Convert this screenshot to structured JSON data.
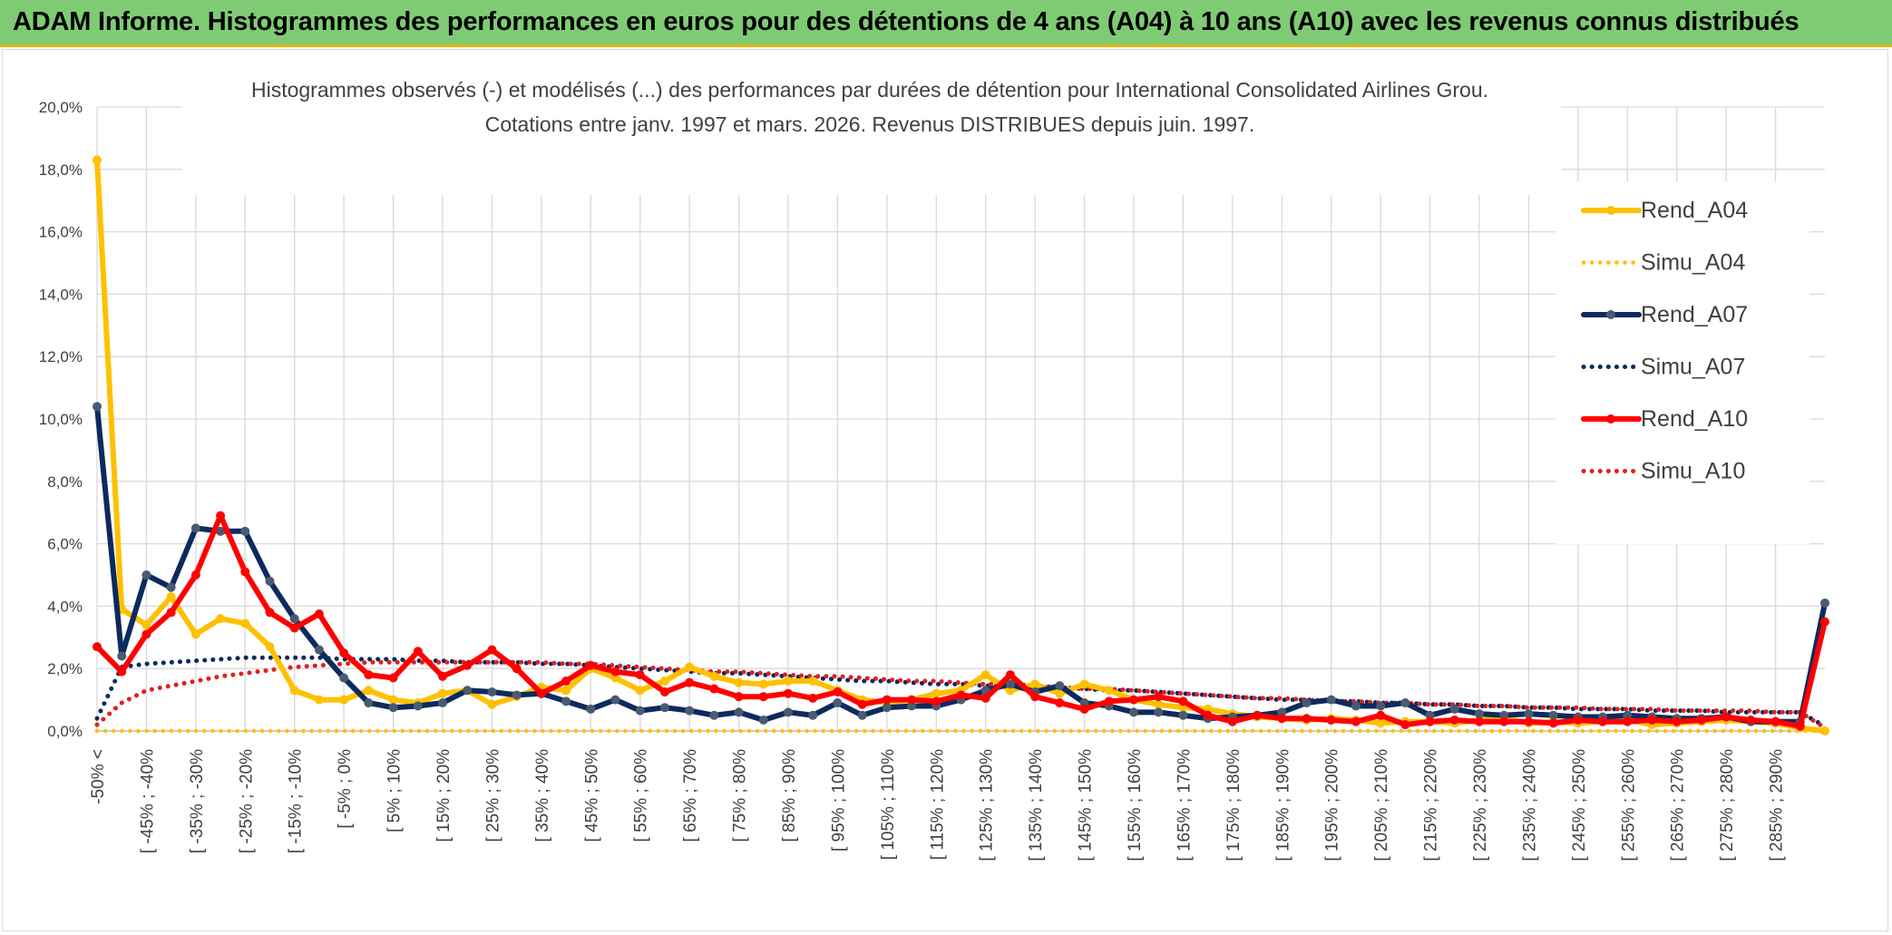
{
  "banner": {
    "title": "ADAM Informe. Histogrammes des performances en euros pour des détentions de 4 ans (A04) à 10 ans (A10) avec les revenus connus distribués"
  },
  "colors": {
    "banner_bg": "#7fcb74",
    "banner_accent": "#e8b400",
    "rend_a04": "#ffc000",
    "simu_a04": "#ffc000",
    "rend_a07": "#0d2a5e",
    "simu_a07": "#0d2a5e",
    "rend_a10": "#ff0000",
    "simu_a10": "#e02020",
    "marker_a07": "#4a5a70"
  },
  "chart_data": {
    "type": "line",
    "title": "Histogrammes observés (-) et modélisés (...) des performances par durées de détention pour International Consolidated Airlines Grou.",
    "subtitle": "Cotations entre janv. 1997 et mars. 2026. Revenus DISTRIBUES depuis juin. 1997.",
    "xlabel": "",
    "ylabel": "",
    "ylim": [
      0,
      20
    ],
    "y_ticks": [
      "0,0%",
      "2,0%",
      "4,0%",
      "6,0%",
      "8,0%",
      "10,0%",
      "12,0%",
      "14,0%",
      "16,0%",
      "18,0%",
      "20,0%"
    ],
    "grid": true,
    "legend_position": "right",
    "x_tick_labels": [
      "-50% <",
      "[ -45% ; -40%",
      "[ -35% ; -30%",
      "[ -25% ; -20%",
      "[ -15% ; -10%",
      "[ -5% ; 0%",
      "[ 5% ; 10%",
      "[ 15% ; 20%",
      "[ 25% ; 30%",
      "[ 35% ; 40%",
      "[ 45% ; 50%",
      "[ 55% ; 60%",
      "[ 65% ; 70%",
      "[ 75% ; 80%",
      "[ 85% ; 90%",
      "[ 95% ; 100%",
      "[ 105% ; 110%",
      "[ 115% ; 120%",
      "[ 125% ; 130%",
      "[ 135% ; 140%",
      "[ 145% ; 150%",
      "[ 155% ; 160%",
      "[ 165% ; 170%",
      "[ 175% ; 180%",
      "[ 185% ; 190%",
      "[ 195% ; 200%",
      "[ 205% ; 210%",
      "[ 215% ; 220%",
      "[ 225% ; 230%",
      "[ 235% ; 240%",
      "[ 245% ; 250%",
      "[ 255% ; 260%",
      "[ 265% ; 270%",
      "[ 275% ; 280%",
      "[ 285% ; 290%"
    ],
    "x_count": 71,
    "series": [
      {
        "name": "Rend_A04",
        "style": "solid",
        "values": [
          18.3,
          3.9,
          3.4,
          4.3,
          3.1,
          3.6,
          3.45,
          2.7,
          1.3,
          1.0,
          1.0,
          1.3,
          1.0,
          0.9,
          1.2,
          1.3,
          0.85,
          1.1,
          1.4,
          1.3,
          2.0,
          1.7,
          1.3,
          1.6,
          2.05,
          1.75,
          1.55,
          1.5,
          1.6,
          1.6,
          1.3,
          1.0,
          0.9,
          1.0,
          1.2,
          1.3,
          1.8,
          1.3,
          1.5,
          1.2,
          1.5,
          1.3,
          1.0,
          0.85,
          0.75,
          0.7,
          0.55,
          0.45,
          0.4,
          0.35,
          0.4,
          0.35,
          0.25,
          0.3,
          0.3,
          0.25,
          0.35,
          0.4,
          0.25,
          0.3,
          0.25,
          0.3,
          0.35,
          0.2,
          0.25,
          0.3,
          0.35,
          0.3,
          0.25,
          0.1,
          0.0
        ]
      },
      {
        "name": "Simu_A04",
        "style": "dotted",
        "values": [
          0.0,
          0.0,
          0.0,
          0.0,
          0.0,
          0.0,
          0.0,
          0.0,
          0.0,
          0.0,
          0.0,
          0.0,
          0.0,
          0.0,
          0.0,
          0.0,
          0.0,
          0.0,
          0.0,
          0.0,
          0.0,
          0.0,
          0.0,
          0.0,
          0.0,
          0.0,
          0.0,
          0.0,
          0.0,
          0.0,
          0.0,
          0.0,
          0.0,
          0.0,
          0.0,
          0.0,
          0.0,
          0.0,
          0.0,
          0.0,
          0.0,
          0.0,
          0.0,
          0.0,
          0.0,
          0.0,
          0.0,
          0.0,
          0.0,
          0.0,
          0.0,
          0.0,
          0.0,
          0.0,
          0.0,
          0.0,
          0.0,
          0.0,
          0.0,
          0.0,
          0.0,
          0.0,
          0.0,
          0.0,
          0.0,
          0.0,
          0.0,
          0.0,
          0.0,
          0.0,
          0.0
        ]
      },
      {
        "name": "Rend_A07",
        "style": "solid",
        "values": [
          10.4,
          2.4,
          5.0,
          4.6,
          6.5,
          6.4,
          6.4,
          4.8,
          3.6,
          2.6,
          1.7,
          0.9,
          0.75,
          0.8,
          0.9,
          1.3,
          1.25,
          1.15,
          1.2,
          0.95,
          0.7,
          1.0,
          0.65,
          0.75,
          0.65,
          0.5,
          0.6,
          0.35,
          0.6,
          0.5,
          0.9,
          0.5,
          0.75,
          0.8,
          0.8,
          1.0,
          1.3,
          1.5,
          1.25,
          1.45,
          0.9,
          0.8,
          0.6,
          0.6,
          0.5,
          0.4,
          0.45,
          0.5,
          0.6,
          0.9,
          1.0,
          0.8,
          0.8,
          0.9,
          0.5,
          0.7,
          0.55,
          0.5,
          0.55,
          0.5,
          0.45,
          0.45,
          0.5,
          0.45,
          0.4,
          0.4,
          0.45,
          0.3,
          0.3,
          0.3,
          4.1
        ]
      },
      {
        "name": "Simu_A07",
        "style": "dotted",
        "values": [
          0.4,
          2.05,
          2.15,
          2.2,
          2.25,
          2.3,
          2.35,
          2.35,
          2.35,
          2.35,
          2.3,
          2.3,
          2.3,
          2.25,
          2.25,
          2.2,
          2.2,
          2.2,
          2.15,
          2.15,
          2.1,
          2.05,
          2.0,
          1.95,
          1.9,
          1.85,
          1.85,
          1.8,
          1.75,
          1.7,
          1.65,
          1.6,
          1.6,
          1.55,
          1.5,
          1.5,
          1.45,
          1.45,
          1.4,
          1.4,
          1.35,
          1.3,
          1.3,
          1.25,
          1.2,
          1.15,
          1.1,
          1.05,
          1.0,
          1.0,
          0.95,
          0.95,
          0.9,
          0.9,
          0.85,
          0.85,
          0.8,
          0.8,
          0.75,
          0.75,
          0.7,
          0.7,
          0.7,
          0.65,
          0.65,
          0.65,
          0.6,
          0.6,
          0.6,
          0.6,
          0.15
        ]
      },
      {
        "name": "Rend_A10",
        "style": "solid",
        "values": [
          2.7,
          1.9,
          3.1,
          3.8,
          5.0,
          6.9,
          5.1,
          3.8,
          3.3,
          3.75,
          2.5,
          1.8,
          1.7,
          2.55,
          1.75,
          2.1,
          2.6,
          2.0,
          1.2,
          1.6,
          2.1,
          1.9,
          1.8,
          1.25,
          1.55,
          1.35,
          1.1,
          1.1,
          1.2,
          1.05,
          1.25,
          0.85,
          1.0,
          1.0,
          0.95,
          1.15,
          1.05,
          1.8,
          1.1,
          0.9,
          0.7,
          0.95,
          1.0,
          1.1,
          0.95,
          0.5,
          0.3,
          0.5,
          0.4,
          0.4,
          0.35,
          0.3,
          0.5,
          0.2,
          0.3,
          0.35,
          0.3,
          0.3,
          0.3,
          0.25,
          0.35,
          0.3,
          0.3,
          0.35,
          0.3,
          0.35,
          0.45,
          0.35,
          0.3,
          0.15,
          3.5
        ]
      },
      {
        "name": "Simu_A10",
        "style": "dotted",
        "values": [
          0.2,
          0.9,
          1.3,
          1.45,
          1.6,
          1.75,
          1.85,
          1.95,
          2.05,
          2.1,
          2.15,
          2.2,
          2.2,
          2.2,
          2.2,
          2.2,
          2.2,
          2.2,
          2.2,
          2.15,
          2.15,
          2.1,
          2.05,
          2.0,
          1.95,
          1.9,
          1.9,
          1.85,
          1.8,
          1.75,
          1.75,
          1.7,
          1.65,
          1.6,
          1.6,
          1.55,
          1.5,
          1.5,
          1.45,
          1.4,
          1.35,
          1.35,
          1.3,
          1.25,
          1.2,
          1.15,
          1.1,
          1.05,
          1.05,
          1.0,
          0.95,
          0.95,
          0.9,
          0.9,
          0.85,
          0.85,
          0.8,
          0.8,
          0.75,
          0.75,
          0.75,
          0.7,
          0.7,
          0.7,
          0.65,
          0.65,
          0.65,
          0.65,
          0.6,
          0.6,
          0.1
        ]
      }
    ]
  }
}
